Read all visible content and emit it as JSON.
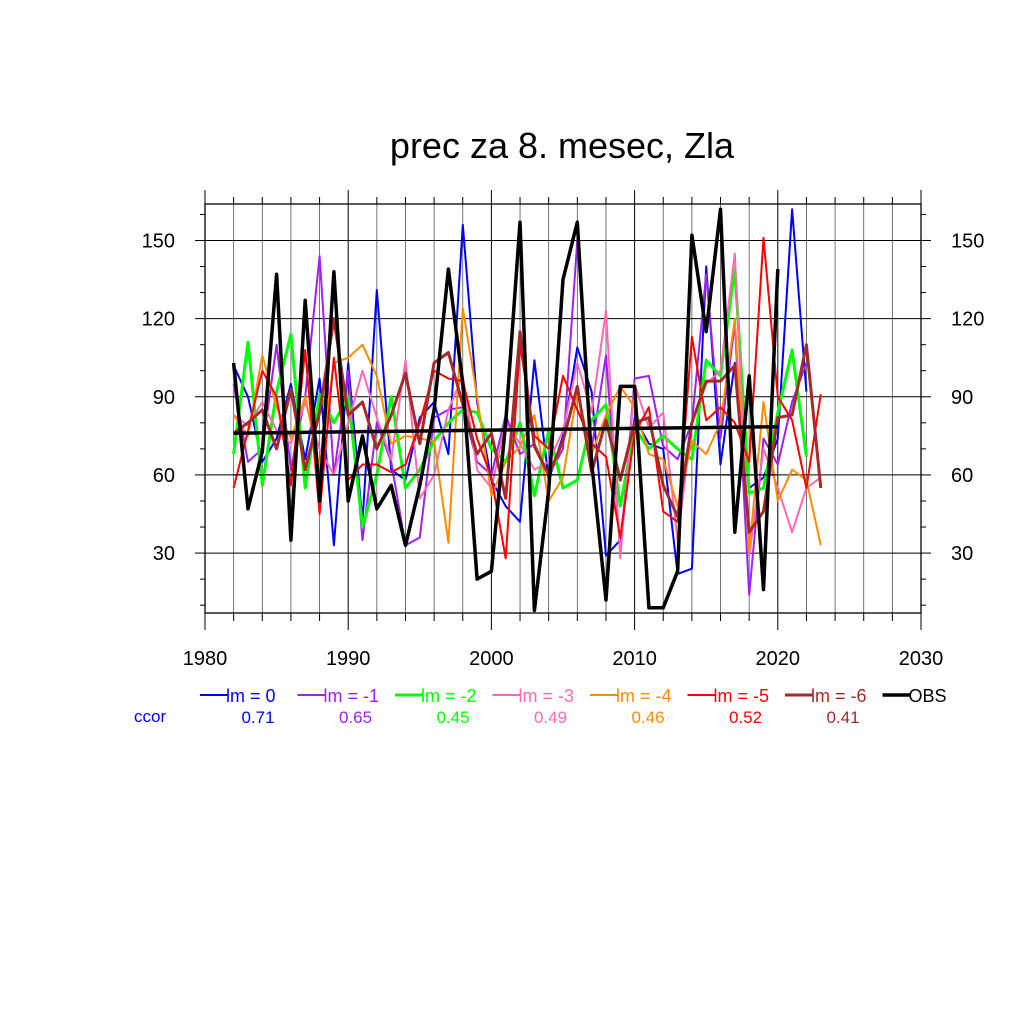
{
  "chart_data": {
    "type": "line",
    "title": "prec za 8. mesec, Zla",
    "xlabel": "",
    "ylabel": "",
    "xlim": [
      1980,
      2030
    ],
    "ylim": [
      7,
      164
    ],
    "x_ticks": [
      1980,
      1990,
      2000,
      2010,
      2020,
      2030
    ],
    "y_ticks": [
      30,
      60,
      90,
      120,
      150
    ],
    "grid": true,
    "legend_position": "bottom",
    "ccor_label": "ccor",
    "series": [
      {
        "name": "lm = 0",
        "color": "#0000ff",
        "width": 2,
        "corr": "0.71",
        "start": 1982,
        "values": [
          102,
          90,
          65,
          74,
          95,
          66,
          97,
          33,
          103,
          42,
          131,
          62,
          58,
          82,
          88,
          68,
          156,
          88,
          58,
          48,
          42,
          104,
          58,
          75,
          109,
          92,
          29,
          35,
          82,
          72,
          70,
          22,
          24,
          140,
          64,
          103,
          55,
          59,
          74,
          162,
          92
        ]
      },
      {
        "name": "lm = -1",
        "color": "#a020f0",
        "width": 2,
        "corr": "0.65",
        "start": 1982,
        "values": [
          95,
          65,
          70,
          110,
          62,
          90,
          144,
          60,
          100,
          35,
          80,
          65,
          33,
          36,
          82,
          85,
          86,
          65,
          60,
          83,
          68,
          72,
          60,
          70,
          150,
          70,
          106,
          30,
          97,
          98,
          71,
          66,
          80,
          137,
          74,
          118,
          14,
          74,
          64,
          88,
          103
        ]
      },
      {
        "name": "lm = -2",
        "color": "#00ff00",
        "width": 3,
        "corr": "0.45",
        "start": 1982,
        "values": [
          68,
          111,
          56,
          92,
          114,
          55,
          91,
          80,
          90,
          40,
          60,
          90,
          55,
          62,
          73,
          80,
          85,
          84,
          70,
          65,
          80,
          52,
          77,
          55,
          58,
          81,
          87,
          48,
          78,
          70,
          75,
          70,
          66,
          104,
          98,
          139,
          53,
          55,
          84,
          108,
          67
        ]
      },
      {
        "name": "lm = -3",
        "color": "#ff69b4",
        "width": 2,
        "corr": "0.49",
        "start": 1982,
        "values": [
          83,
          79,
          88,
          77,
          72,
          88,
          70,
          60,
          80,
          100,
          82,
          66,
          104,
          51,
          60,
          85,
          98,
          62,
          55,
          80,
          72,
          62,
          65,
          77,
          103,
          84,
          123,
          28,
          95,
          78,
          84,
          35,
          80,
          95,
          100,
          145,
          29,
          70,
          55,
          38,
          55,
          59
        ]
      },
      {
        "name": "lm = -4",
        "color": "#ff8c00",
        "width": 2,
        "corr": "0.46",
        "start": 1982,
        "values": [
          83,
          75,
          106,
          86,
          74,
          90,
          63,
          103,
          105,
          110,
          98,
          72,
          75,
          74,
          73,
          34,
          124,
          90,
          52,
          65,
          71,
          83,
          50,
          59,
          92,
          68,
          83,
          94,
          86,
          68,
          66,
          48,
          73,
          68,
          80,
          120,
          31,
          88,
          50,
          62,
          58,
          33
        ]
      },
      {
        "name": "lm = -5",
        "color": "#ff0000",
        "width": 2,
        "corr": "0.52",
        "start": 1982,
        "values": [
          55,
          77,
          100,
          90,
          56,
          108,
          45,
          105,
          58,
          64,
          64,
          61,
          64,
          80,
          100,
          97,
          96,
          74,
          59,
          28,
          110,
          75,
          70,
          98,
          85,
          72,
          67,
          36,
          76,
          86,
          46,
          42,
          113,
          81,
          86,
          80,
          65,
          151,
          90,
          81,
          55,
          91
        ]
      },
      {
        "name": "lm = -6",
        "color": "#a52a2a",
        "width": 3,
        "corr": "0.41",
        "start": 1982,
        "values": [
          76,
          80,
          85,
          70,
          93,
          62,
          84,
          120,
          83,
          88,
          70,
          83,
          99,
          72,
          103,
          107,
          87,
          68,
          76,
          51,
          115,
          71,
          60,
          73,
          94,
          61,
          81,
          58,
          80,
          82,
          56,
          44,
          80,
          96,
          96,
          102,
          38,
          46,
          82,
          83,
          110,
          55
        ]
      },
      {
        "name": "OBS",
        "color": "#000000",
        "width": 3.5,
        "corr": "",
        "start": 1982,
        "values": [
          103,
          47,
          69,
          137,
          35,
          127,
          50,
          138,
          50,
          75,
          47,
          56,
          33,
          56,
          85,
          139,
          95,
          20,
          23,
          80,
          157,
          8,
          54,
          135,
          157,
          65,
          12,
          94,
          94,
          9,
          9,
          23,
          152,
          115,
          162,
          38,
          98,
          16,
          139
        ]
      },
      {
        "name": "",
        "color": "#000000",
        "width": 3.5,
        "corr": "",
        "x": [
          1982,
          2020
        ],
        "values": [
          76,
          78.5
        ]
      },
      {
        "name": "",
        "color": "#000000",
        "width": 1.3,
        "corr": "",
        "x": [
          1982,
          2020
        ],
        "values": [
          60,
          60
        ]
      }
    ]
  }
}
